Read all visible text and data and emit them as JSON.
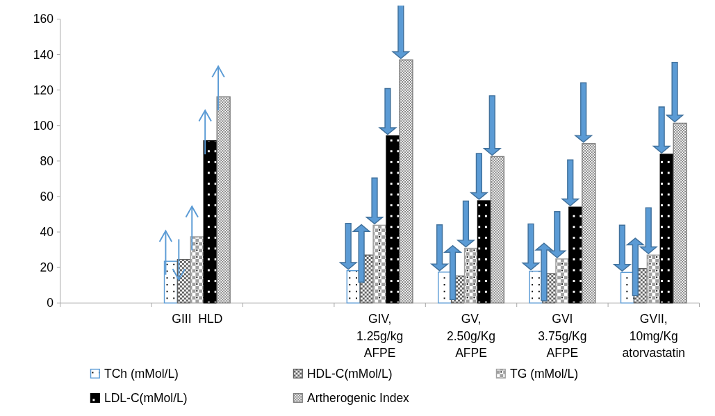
{
  "chart_data": {
    "type": "bar",
    "categories": [
      null,
      "GIII  HLD",
      null,
      "GIV, 1.25g/kg AFPE",
      "GV, 2.50g/Kg AFPE",
      "GVI 3.75g/Kg AFPE",
      "GVII, 10mg/Kg atorvastatin"
    ],
    "series": [
      {
        "name": "TCh (mMol/L)",
        "color": "#5b9bd5",
        "values": [
          null,
          23.5,
          null,
          18.2,
          17.4,
          17.9,
          17.2
        ]
      },
      {
        "name": "HDL-C(mMol/L)",
        "color": "#606060",
        "values": [
          null,
          24.5,
          null,
          27,
          15.2,
          16.5,
          19.4
        ]
      },
      {
        "name": "TG (mMol/L)",
        "color": "#a0a0a0",
        "values": [
          null,
          37.3,
          null,
          43.8,
          30.8,
          24.8,
          27
        ]
      },
      {
        "name": "LDL-C(mMol/L)",
        "color": "#000000",
        "values": [
          null,
          91.4,
          null,
          94.2,
          57.6,
          54,
          83.8
        ]
      },
      {
        "name": "Artherogenic Index",
        "color": "#808080",
        "values": [
          null,
          116.2,
          null,
          137,
          82.5,
          89.8,
          101.3
        ]
      }
    ],
    "ylim": [
      0,
      160
    ],
    "yticks": [
      0,
      20,
      40,
      60,
      80,
      100,
      120,
      140,
      160
    ],
    "grid": false,
    "legend": "bottom"
  }
}
